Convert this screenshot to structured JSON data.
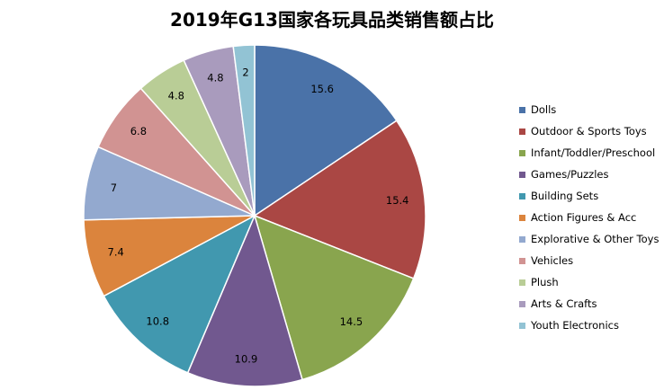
{
  "chart_data": {
    "type": "pie",
    "title": "2019年G13国家各玩具品类销售额占比",
    "slices": [
      {
        "label": "Dolls",
        "value": 15.6,
        "color": "#4a72a8"
      },
      {
        "label": "Outdoor & Sports Toys",
        "value": 15.4,
        "color": "#aa4744"
      },
      {
        "label": "Infant/Toddler/Preschool",
        "value": 14.5,
        "color": "#89a54e"
      },
      {
        "label": "Games/Puzzles",
        "value": 10.9,
        "color": "#71588f"
      },
      {
        "label": "Building Sets",
        "value": 10.8,
        "color": "#4198af"
      },
      {
        "label": "Action Figures & Acc",
        "value": 7.4,
        "color": "#db843d"
      },
      {
        "label": "Explorative & Other Toys",
        "value": 7,
        "color": "#93a9cf"
      },
      {
        "label": "Vehicles",
        "value": 6.8,
        "color": "#d19392"
      },
      {
        "label": "Plush",
        "value": 4.8,
        "color": "#b9cd96"
      },
      {
        "label": "Arts & Crafts",
        "value": 4.8,
        "color": "#a99bbd"
      },
      {
        "label": "Youth Electronics",
        "value": 2,
        "color": "#92c3d4"
      }
    ],
    "legend_position": "right",
    "start_angle": "12 o'clock, clockwise"
  }
}
